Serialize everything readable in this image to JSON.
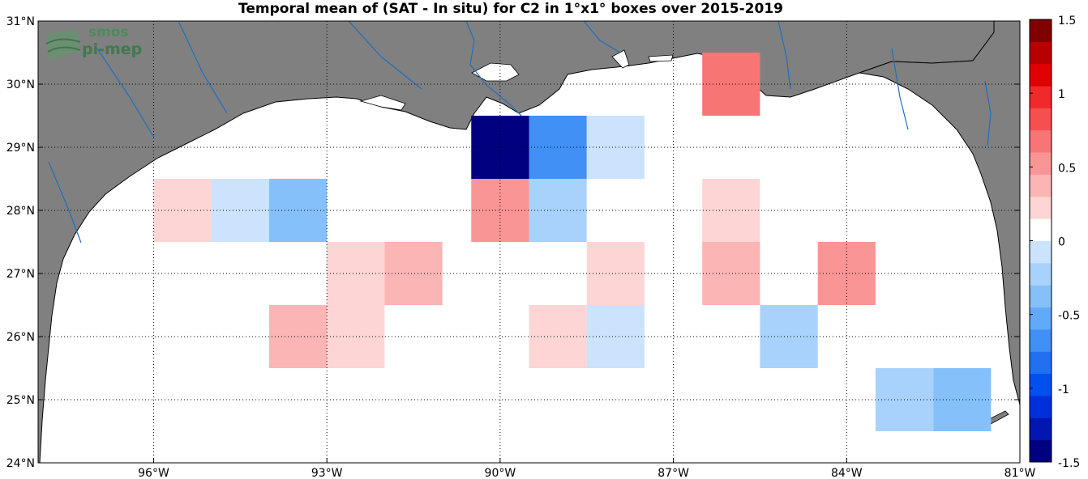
{
  "title": "Temporal mean of (SAT - In situ) for C2 in 1°x1° boxes over 2015-2019",
  "logo": {
    "line1": "smos",
    "line2": "pi-mep"
  },
  "colors": {
    "land": "#808080",
    "water": "#ffffff",
    "river": "#1f6fbf",
    "grid": "#000000"
  },
  "map": {
    "lon_range": [
      -98,
      -81
    ],
    "lat_range": [
      24,
      31
    ],
    "x_ticks": [
      {
        "lon": -96,
        "label": "96°W"
      },
      {
        "lon": -93,
        "label": "93°W"
      },
      {
        "lon": -90,
        "label": "90°W"
      },
      {
        "lon": -87,
        "label": "87°W"
      },
      {
        "lon": -84,
        "label": "84°W"
      },
      {
        "lon": -81,
        "label": "81°W"
      }
    ],
    "y_ticks": [
      {
        "lat": 24,
        "label": "24°N"
      },
      {
        "lat": 25,
        "label": "25°N"
      },
      {
        "lat": 26,
        "label": "26°N"
      },
      {
        "lat": 27,
        "label": "27°N"
      },
      {
        "lat": 28,
        "label": "28°N"
      },
      {
        "lat": 29,
        "label": "29°N"
      },
      {
        "lat": 30,
        "label": "30°N"
      },
      {
        "lat": 31,
        "label": "31°N"
      }
    ]
  },
  "colorbar": {
    "range": [
      -1.5,
      1.5
    ],
    "tick_labels": [
      {
        "v": 1.5,
        "label": "1.5"
      },
      {
        "v": 1,
        "label": "1"
      },
      {
        "v": 0.5,
        "label": "0.5"
      },
      {
        "v": 0,
        "label": "0"
      },
      {
        "v": -0.5,
        "label": "-0.5"
      },
      {
        "v": -1,
        "label": "-1"
      },
      {
        "v": -1.5,
        "label": "-1.5"
      }
    ]
  },
  "chart_data": {
    "type": "heatmap",
    "title": "Temporal mean of (SAT - In situ) for C2 in 1°x1° boxes over 2015-2019",
    "cell_size_deg": 1,
    "value_range": [
      -1.5,
      1.5
    ],
    "cells": [
      {
        "lon": -95.5,
        "lat": 28,
        "value": 0.3
      },
      {
        "lon": -94.5,
        "lat": 28,
        "value": -0.15
      },
      {
        "lon": -93.5,
        "lat": 28,
        "value": -0.4
      },
      {
        "lon": -90,
        "lat": 29,
        "value": -1.5
      },
      {
        "lon": -89,
        "lat": 29,
        "value": -0.75
      },
      {
        "lon": -88,
        "lat": 29,
        "value": -0.15
      },
      {
        "lon": -87,
        "lat": 29,
        "value": 0.15
      },
      {
        "lon": -86,
        "lat": 29,
        "value": 0.15
      },
      {
        "lon": -86,
        "lat": 30,
        "value": 0.7
      },
      {
        "lon": -90,
        "lat": 28,
        "value": 0.6
      },
      {
        "lon": -89,
        "lat": 28,
        "value": -0.25
      },
      {
        "lon": -88,
        "lat": 28,
        "value": 0.15
      },
      {
        "lon": -87,
        "lat": 28,
        "value": 0.15
      },
      {
        "lon": -86,
        "lat": 28,
        "value": 0.3
      },
      {
        "lon": -85,
        "lat": 28,
        "value": 0.15
      },
      {
        "lon": -95.5,
        "lat": 27,
        "value": 0.15
      },
      {
        "lon": -93.5,
        "lat": 27,
        "value": 0.15
      },
      {
        "lon": -92.5,
        "lat": 27,
        "value": 0.3
      },
      {
        "lon": -91.5,
        "lat": 27,
        "value": 0.45
      },
      {
        "lon": -89,
        "lat": 27,
        "value": 0.15
      },
      {
        "lon": -88,
        "lat": 27,
        "value": 0.3
      },
      {
        "lon": -87,
        "lat": 27,
        "value": 0.15
      },
      {
        "lon": -86,
        "lat": 27,
        "value": 0.45
      },
      {
        "lon": -85,
        "lat": 27,
        "value": 0.15
      },
      {
        "lon": -84,
        "lat": 27,
        "value": 0.55
      },
      {
        "lon": -95.5,
        "lat": 26,
        "value": 0.15
      },
      {
        "lon": -94.5,
        "lat": 26,
        "value": 0.15
      },
      {
        "lon": -93.5,
        "lat": 26,
        "value": 0.45
      },
      {
        "lon": -92.5,
        "lat": 26,
        "value": 0.3
      },
      {
        "lon": -89,
        "lat": 26,
        "value": 0.3
      },
      {
        "lon": -88,
        "lat": 26,
        "value": -0.15
      },
      {
        "lon": -85,
        "lat": 26,
        "value": -0.25
      },
      {
        "lon": -94.5,
        "lat": 25,
        "value": 0.15
      },
      {
        "lon": -91.5,
        "lat": 25,
        "value": 0.15
      },
      {
        "lon": -89,
        "lat": 25,
        "value": 0.15
      },
      {
        "lon": -86,
        "lat": 25,
        "value": 0.15
      },
      {
        "lon": -85,
        "lat": 25,
        "value": 0.15
      },
      {
        "lon": -84,
        "lat": 25,
        "value": 0.15
      },
      {
        "lon": -83,
        "lat": 25,
        "value": -0.25
      },
      {
        "lon": -82,
        "lat": 25,
        "value": -0.45
      }
    ]
  }
}
